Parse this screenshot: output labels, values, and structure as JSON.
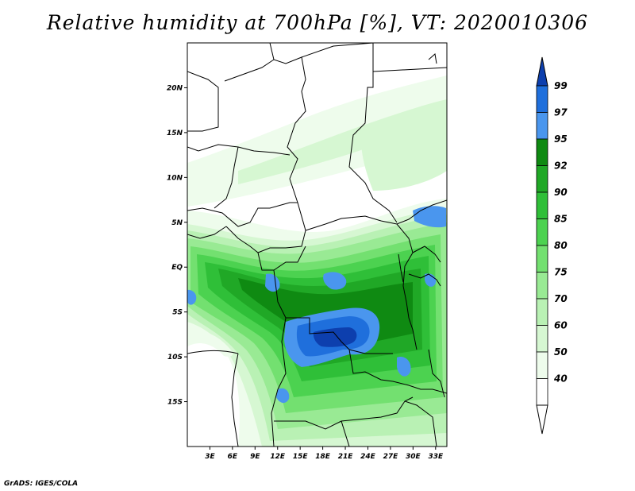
{
  "title": "Relative humidity at 700hPa [%], VT: 2020010306",
  "footer": "GrADS: IGES/COLA",
  "map": {
    "lon_range": [
      0,
      34.5
    ],
    "lat_range": [
      -20,
      25
    ],
    "lat_ticks": [
      {
        "value": 20,
        "label": "20N"
      },
      {
        "value": 15,
        "label": "15N"
      },
      {
        "value": 10,
        "label": "10N"
      },
      {
        "value": 5,
        "label": "5N"
      },
      {
        "value": 0,
        "label": "EQ"
      },
      {
        "value": -5,
        "label": "5S"
      },
      {
        "value": -10,
        "label": "10S"
      },
      {
        "value": -15,
        "label": "15S"
      }
    ],
    "lon_ticks": [
      {
        "value": 3,
        "label": "3E"
      },
      {
        "value": 6,
        "label": "6E"
      },
      {
        "value": 9,
        "label": "9E"
      },
      {
        "value": 12,
        "label": "12E"
      },
      {
        "value": 15,
        "label": "15E"
      },
      {
        "value": 18,
        "label": "18E"
      },
      {
        "value": 21,
        "label": "21E"
      },
      {
        "value": 24,
        "label": "24E"
      },
      {
        "value": 27,
        "label": "27E"
      },
      {
        "value": 30,
        "label": "30E"
      },
      {
        "value": 33,
        "label": "33E"
      }
    ]
  },
  "colorbar": {
    "levels": [
      "99",
      "97",
      "95",
      "92",
      "90",
      "85",
      "80",
      "75",
      "70",
      "60",
      "50",
      "40"
    ],
    "colors": [
      "#0d3fae",
      "#1f6fdc",
      "#4a96ee",
      "#0f8a12",
      "#20a826",
      "#2fbf38",
      "#4cd250",
      "#73e070",
      "#99ea94",
      "#b9f1b4",
      "#d6f7d2",
      "#eefcec"
    ]
  }
}
